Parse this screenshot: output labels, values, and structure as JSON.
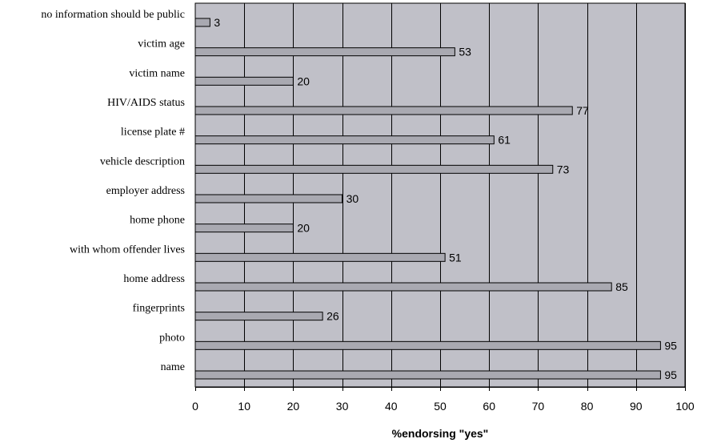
{
  "chart_data": {
    "type": "bar",
    "orientation": "horizontal",
    "categories": [
      "no information should be public",
      "victim age",
      "victim name",
      "HIV/AIDS status",
      "license plate #",
      "vehicle description",
      "employer address",
      "home phone",
      "with whom offender lives",
      "home address",
      "fingerprints",
      "photo",
      "name"
    ],
    "values": [
      3,
      53,
      20,
      77,
      61,
      73,
      30,
      20,
      51,
      85,
      26,
      95,
      95
    ],
    "xlabel": "%endorsing \"yes\"",
    "ylabel": "",
    "xlim": [
      0,
      100
    ],
    "xticks": [
      0,
      10,
      20,
      30,
      40,
      50,
      60,
      70,
      80,
      90,
      100
    ],
    "grid": "vertical",
    "colors": {
      "plot_background": "#c0c0c8",
      "bar_fill": "#a9a9b1",
      "bar_stroke": "#000000",
      "gridline": "#000000"
    }
  }
}
